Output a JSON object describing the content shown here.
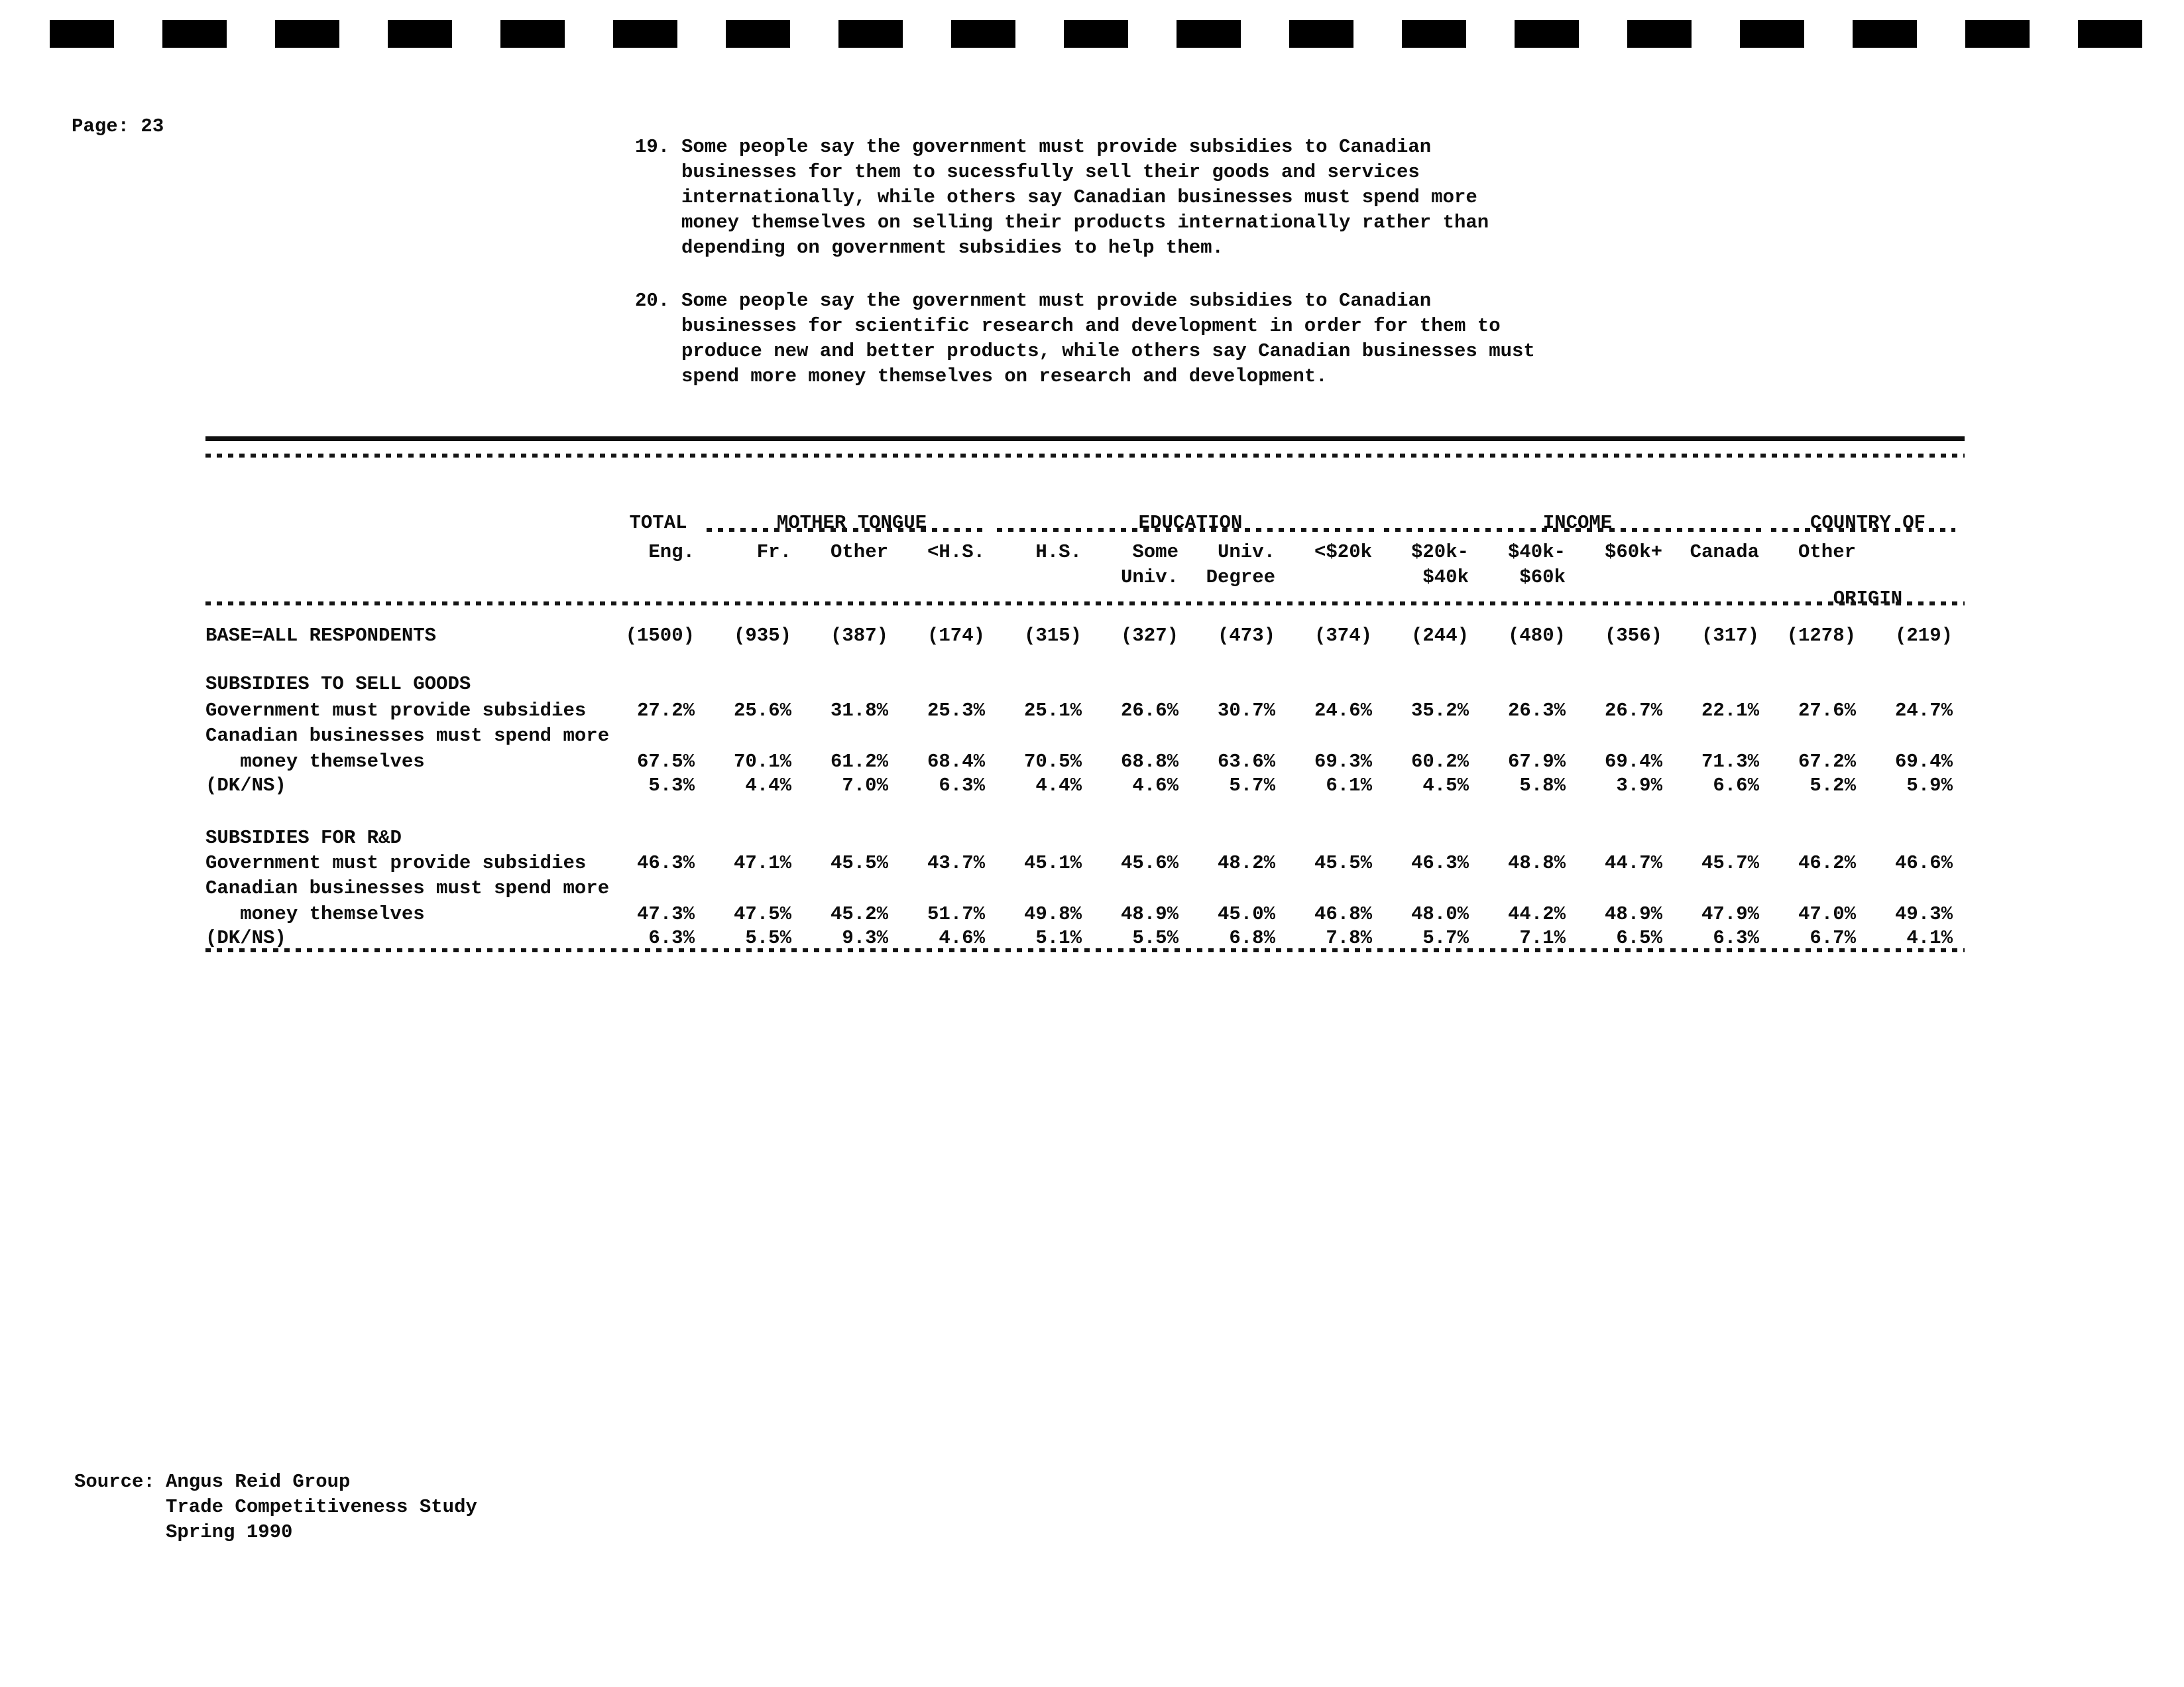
{
  "page": {
    "label": "Page: 23"
  },
  "questions": [
    {
      "number": "19.",
      "text": "Some people say the government must provide subsidies to Canadian\nbusinesses for them to sucessfully sell their goods and services\ninternationally, while others say Canadian businesses must spend more\nmoney themselves on selling their products internationally rather than\ndepending on government subsidies to help them."
    },
    {
      "number": "20.",
      "text": "Some people say the government must provide subsidies to Canadian\nbusinesses for scientific research and development in order for them to\nproduce new and better products, while others say Canadian businesses must\nspend more money themselves on research and development."
    }
  ],
  "table": {
    "groups": [
      {
        "label": "TOTAL",
        "label2": ""
      },
      {
        "label": "MOTHER TONGUE",
        "label2": ""
      },
      {
        "label": "EDUCATION",
        "label2": ""
      },
      {
        "label": "INCOME",
        "label2": ""
      },
      {
        "label": "COUNTRY OF",
        "label2": "ORIGIN"
      }
    ],
    "sub": [
      {
        "l1": "",
        "l2": ""
      },
      {
        "l1": "Eng.",
        "l2": ""
      },
      {
        "l1": "Fr.",
        "l2": ""
      },
      {
        "l1": "Other",
        "l2": ""
      },
      {
        "l1": "<H.S.",
        "l2": ""
      },
      {
        "l1": "H.S.",
        "l2": ""
      },
      {
        "l1": "Some",
        "l2": "Univ."
      },
      {
        "l1": "Univ.",
        "l2": "Degree"
      },
      {
        "l1": "<$20k",
        "l2": ""
      },
      {
        "l1": "$20k-",
        "l2": "$40k"
      },
      {
        "l1": "$40k-",
        "l2": "$60k"
      },
      {
        "l1": "$60k+",
        "l2": ""
      },
      {
        "l1": "Canada",
        "l2": ""
      },
      {
        "l1": "Other",
        "l2": ""
      }
    ],
    "base": {
      "label": "BASE=ALL RESPONDENTS",
      "values": [
        "(1500)",
        "(935)",
        "(387)",
        "(174)",
        "(315)",
        "(327)",
        "(473)",
        "(374)",
        "(244)",
        "(480)",
        "(356)",
        "(317)",
        "(1278)",
        "(219)"
      ]
    },
    "sections": [
      {
        "title": "SUBSIDIES TO SELL GOODS",
        "rows": [
          {
            "label": "Government must provide subsidies",
            "values": [
              "27.2%",
              "25.6%",
              "31.8%",
              "25.3%",
              "25.1%",
              "26.6%",
              "30.7%",
              "24.6%",
              "35.2%",
              "26.3%",
              "26.7%",
              "22.1%",
              "27.6%",
              "24.7%"
            ]
          },
          {
            "label": "Canadian businesses must spend more",
            "values": []
          },
          {
            "label": "   money themselves",
            "values": [
              "67.5%",
              "70.1%",
              "61.2%",
              "68.4%",
              "70.5%",
              "68.8%",
              "63.6%",
              "69.3%",
              "60.2%",
              "67.9%",
              "69.4%",
              "71.3%",
              "67.2%",
              "69.4%"
            ]
          },
          {
            "label": "(DK/NS)",
            "values": [
              "5.3%",
              "4.4%",
              "7.0%",
              "6.3%",
              "4.4%",
              "4.6%",
              "5.7%",
              "6.1%",
              "4.5%",
              "5.8%",
              "3.9%",
              "6.6%",
              "5.2%",
              "5.9%"
            ]
          }
        ]
      },
      {
        "title": "SUBSIDIES FOR R&D",
        "rows": [
          {
            "label": "Government must provide subsidies",
            "values": [
              "46.3%",
              "47.1%",
              "45.5%",
              "43.7%",
              "45.1%",
              "45.6%",
              "48.2%",
              "45.5%",
              "46.3%",
              "48.8%",
              "44.7%",
              "45.7%",
              "46.2%",
              "46.6%"
            ]
          },
          {
            "label": "Canadian businesses must spend more",
            "values": []
          },
          {
            "label": "   money themselves",
            "values": [
              "47.3%",
              "47.5%",
              "45.2%",
              "51.7%",
              "49.8%",
              "48.9%",
              "45.0%",
              "46.8%",
              "48.0%",
              "44.2%",
              "48.9%",
              "47.9%",
              "47.0%",
              "49.3%"
            ]
          },
          {
            "label": "(DK/NS)",
            "values": [
              "6.3%",
              "5.5%",
              "9.3%",
              "4.6%",
              "5.1%",
              "5.5%",
              "6.8%",
              "7.8%",
              "5.7%",
              "7.1%",
              "6.5%",
              "6.3%",
              "6.7%",
              "4.1%"
            ]
          }
        ]
      }
    ]
  },
  "source": {
    "label": "Source:",
    "lines": "Angus Reid Group\nTrade Competitiveness Study\nSpring 1990"
  }
}
